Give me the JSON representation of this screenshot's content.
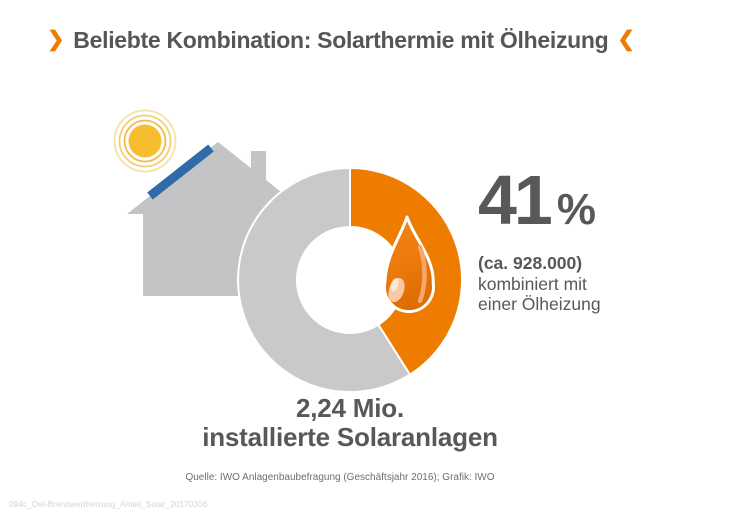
{
  "title": {
    "chevron_open": "❯",
    "text": "Beliebte Kombination: Solarthermie mit Ölheizung",
    "chevron_close": "❮"
  },
  "chart_data": {
    "type": "pie",
    "donut": true,
    "title": "Beliebte Kombination: Solarthermie mit Ölheizung",
    "start_angle_deg": 0,
    "legend": false,
    "total_label": "2,24 Mio. installierte Solaranlagen",
    "total_value_millions": 2.24,
    "slices": [
      {
        "label": "kombiniert mit einer Ölheizung",
        "percent": 41,
        "absolute": "ca. 928.000",
        "color": "#EE7C00"
      },
      {
        "label": "",
        "percent": 59,
        "absolute": "",
        "color": "#C9C9C9"
      }
    ]
  },
  "callout": {
    "percent_sign": "%",
    "absolute": "(ca. 928.000)",
    "line1": "kombiniert mit",
    "line2": "einer Ölheizung"
  },
  "caption": {
    "line1": "2,24 Mio.",
    "line2": "installierte Solaranlagen"
  },
  "source": "Quelle: IWO Anlagenbaubefragung (Geschäftsjahr 2016); Grafik: IWO",
  "document_id": "094c_Oel-Brennwertheizung_Anteil_Solar_20170306",
  "icons": {
    "sun": "sun-icon",
    "house": "house-icon",
    "solar_panel": "solar-panel-icon",
    "oil_drop": "oil-drop-icon",
    "chevron_open": "chevron-right-icon",
    "chevron_close": "chevron-left-icon"
  },
  "colors": {
    "accent_orange": "#EE7C00",
    "donut_gray": "#C9C9C9",
    "house_gray": "#C4C4C6",
    "panel_blue": "#2E6BA8",
    "sun_yellow": "#F6BD2F",
    "text_dark": "#58585A",
    "title_text": "#565659",
    "source_gray": "#6E6E6E",
    "docid_gray": "#D3D3D3",
    "background": "#FFFFFF"
  }
}
